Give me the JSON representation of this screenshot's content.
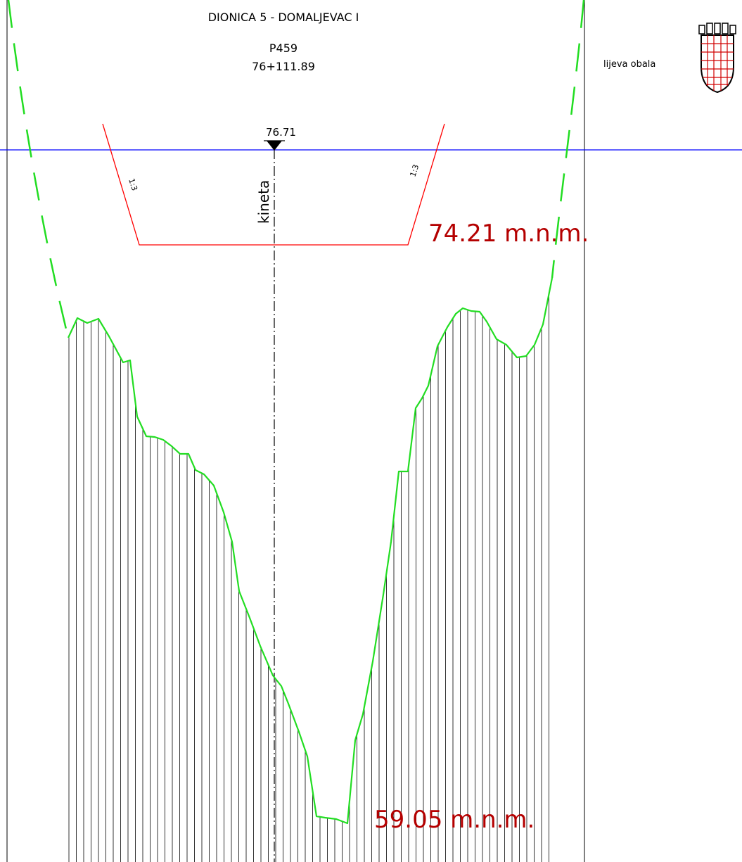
{
  "header": {
    "section": "DIONICA 5 - DOMALJEVAC I",
    "profile": "P459",
    "chainage": "76+111.89"
  },
  "bank_label": "lijeva obala",
  "water_level": "76.71",
  "channel_axis_label": "kineta",
  "slope_label_left": "1:3",
  "slope_label_right": "1:3",
  "elevation_top": "74.21 m.n.m.",
  "elevation_bottom": "59.05 m.n.m.",
  "colors": {
    "terrain": "#22dd22",
    "design_channel": "#ff0000",
    "water_line": "#0000ff",
    "elevation_text": "#b40000",
    "hatch": "#000000"
  },
  "icons": {
    "coat_of_arms": "croatian-coat-of-arms-icon"
  }
}
